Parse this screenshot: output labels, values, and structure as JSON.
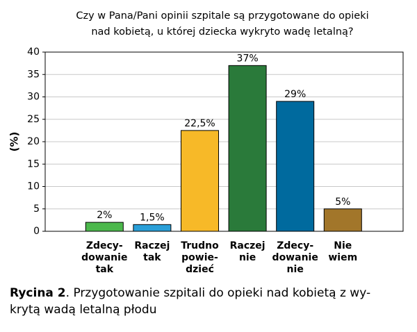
{
  "chart_data": {
    "type": "bar",
    "title": "Czy w Pana/Pani opinii szpitale są przygotowane do opieki\nnad kobietą, u której dziecka wykryto wadę letalną?",
    "y_label": "(%)",
    "categories": [
      "Zdecy-\ndowanie\ntak",
      "Raczej\ntak",
      "Trudno\npowie-\ndzieć",
      "Raczej\nnie",
      "Zdecy-\ndowanie\nnie",
      "Nie\nwiem"
    ],
    "values": [
      2,
      1.5,
      22.5,
      37,
      29,
      5
    ],
    "value_labels": [
      "2%",
      "1,5%",
      "22,5%",
      "37%",
      "29%",
      "5%"
    ],
    "colors": [
      "#4cb84c",
      "#2a9fd8",
      "#f7b928",
      "#2a7a3a",
      "#006a9e",
      "#a2762a"
    ],
    "ylim": [
      0,
      40
    ],
    "yticks": [
      0,
      5,
      10,
      15,
      20,
      25,
      30,
      35,
      40
    ],
    "grid": true
  },
  "caption": {
    "label": "Rycina 2",
    "text": ". Przygotowanie szpitali do opieki nad kobietą z wy-\nkrytą wadą letalną płodu"
  }
}
